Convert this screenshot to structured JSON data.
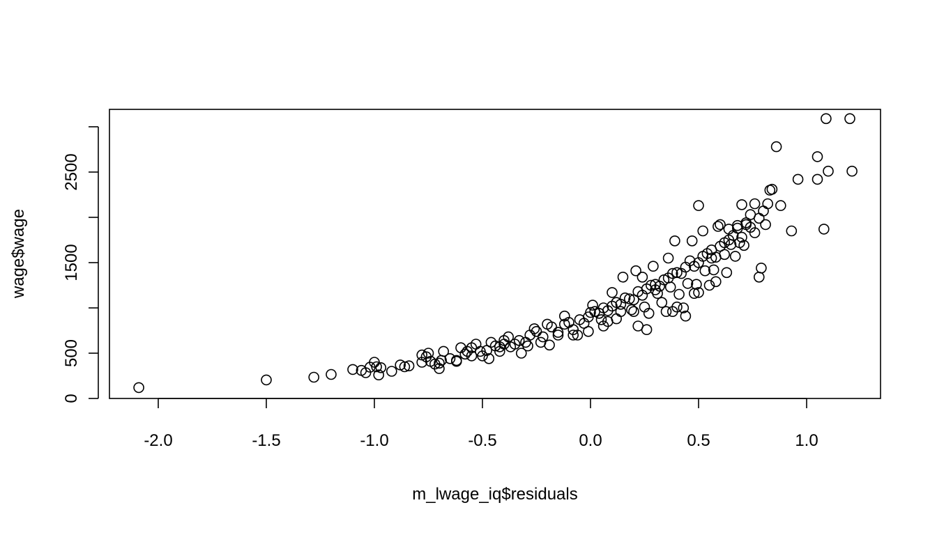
{
  "chart_data": {
    "type": "scatter",
    "title": "",
    "xlabel": "m_lwage_iq$residuals",
    "ylabel": "wage$wage",
    "xlim": [
      -2.25,
      1.35
    ],
    "ylim": [
      0,
      3200
    ],
    "x_ticks": [
      -2.0,
      -1.5,
      -1.0,
      -0.5,
      0.0,
      0.5,
      1.0
    ],
    "x_tick_labels": [
      "-2.0",
      "-1.5",
      "-1.0",
      "-0.5",
      "0.0",
      "0.5",
      "1.0"
    ],
    "y_ticks": [
      0,
      500,
      1000,
      1500,
      2000,
      2500,
      3000
    ],
    "y_tick_labels": [
      "0",
      "500",
      "",
      "1500",
      "",
      "2500",
      ""
    ],
    "grid": false,
    "marker": "open-circle",
    "point_color": "#000000",
    "series": [
      {
        "x": [
          -2.09,
          -1.5,
          -1.28,
          -1.2,
          -1.1,
          -1.06,
          -1.04,
          -1.02,
          -1.0,
          -0.99,
          -0.98,
          -0.97,
          -0.92,
          -0.88,
          -0.86,
          -0.84,
          -0.78,
          -0.76,
          -0.75,
          -0.74,
          -0.72,
          -0.7,
          -0.69,
          -0.68,
          -0.62,
          -0.6,
          -0.57,
          -0.55,
          -0.53,
          -0.5,
          -0.48,
          -0.46,
          -0.44,
          -0.42,
          -0.4,
          -0.38,
          -0.35,
          -0.33,
          -0.3,
          -0.28,
          -0.25,
          -0.22,
          -0.2,
          -0.18,
          -0.15,
          -0.12,
          -0.1,
          -0.08,
          -0.05,
          -0.03,
          -0.01,
          0.0,
          0.02,
          0.04,
          0.06,
          0.08,
          0.1,
          0.12,
          0.14,
          0.16,
          0.18,
          0.2,
          0.22,
          0.24,
          0.26,
          0.28,
          0.3,
          0.32,
          0.34,
          0.36,
          0.38,
          0.4,
          0.42,
          0.44,
          0.46,
          0.48,
          0.5,
          0.52,
          0.54,
          0.56,
          0.58,
          0.6,
          0.62,
          0.64,
          0.66,
          0.68,
          0.7,
          0.72,
          0.74,
          0.76,
          0.78,
          0.8,
          0.82,
          0.84,
          0.86,
          0.88,
          0.93,
          0.96,
          1.05,
          1.05,
          1.08,
          1.09,
          1.1,
          1.2,
          1.21,
          0.79,
          0.78,
          0.5,
          0.44,
          0.3,
          0.26,
          0.22,
          0.08,
          -0.01,
          -0.15,
          -0.29,
          -0.42,
          -0.58,
          -0.65,
          0.4,
          0.35,
          0.6,
          0.65,
          0.7,
          0.72,
          0.76,
          0.81,
          0.83,
          0.74,
          0.69,
          0.62,
          0.55,
          0.48,
          0.43,
          0.38,
          0.31,
          0.25,
          0.19,
          0.12,
          0.06,
          -0.06,
          -0.19,
          -0.32,
          -0.47,
          -0.62,
          0.5,
          0.56,
          0.58,
          0.53,
          0.45,
          0.37,
          0.2,
          0.14,
          0.05,
          -0.08,
          -0.23,
          -0.37,
          -0.51,
          -0.7,
          -0.78,
          0.27,
          0.33,
          0.41,
          0.49,
          0.57,
          0.63,
          0.67,
          0.36,
          0.24,
          0.1,
          0.01,
          -0.12,
          -0.26,
          -0.4,
          -0.55,
          0.15,
          0.21,
          0.29,
          0.39,
          0.47,
          0.52,
          0.59,
          0.64,
          0.68,
          0.71
        ],
        "y": [
          120,
          205,
          235,
          265,
          320,
          310,
          285,
          345,
          400,
          350,
          260,
          340,
          300,
          370,
          350,
          360,
          400,
          460,
          500,
          410,
          380,
          330,
          420,
          520,
          420,
          560,
          520,
          470,
          600,
          470,
          530,
          620,
          580,
          570,
          600,
          680,
          600,
          640,
          620,
          700,
          740,
          680,
          820,
          790,
          730,
          820,
          840,
          760,
          870,
          830,
          900,
          950,
          960,
          940,
          1000,
          970,
          1020,
          1060,
          1040,
          1110,
          1100,
          1090,
          1180,
          1140,
          1210,
          1250,
          1260,
          1240,
          1310,
          1330,
          1380,
          1390,
          1380,
          1450,
          1520,
          1460,
          1500,
          1570,
          1600,
          1640,
          1560,
          1680,
          1720,
          1750,
          1800,
          1880,
          1780,
          1940,
          2030,
          2150,
          1990,
          2070,
          2150,
          2310,
          2780,
          2130,
          1850,
          2420,
          2670,
          2420,
          1870,
          3090,
          2510,
          3090,
          2510,
          1440,
          1340,
          2130,
          910,
          1200,
          760,
          800,
          850,
          740,
          700,
          580,
          520,
          490,
          440,
          1010,
          960,
          1920,
          1700,
          2140,
          1920,
          1830,
          1920,
          2300,
          1890,
          1720,
          1590,
          1250,
          1160,
          1000,
          960,
          1160,
          1010,
          980,
          880,
          800,
          700,
          590,
          500,
          440,
          410,
          1170,
          1550,
          1290,
          1410,
          1270,
          1230,
          960,
          960,
          870,
          700,
          620,
          570,
          520,
          390,
          480,
          940,
          1060,
          1150,
          1260,
          1420,
          1390,
          1570,
          1550,
          1340,
          1170,
          1030,
          910,
          770,
          640,
          560,
          1340,
          1410,
          1460,
          1740,
          1740,
          1850,
          1900,
          1870,
          1910,
          1690
        ]
      }
    ]
  }
}
